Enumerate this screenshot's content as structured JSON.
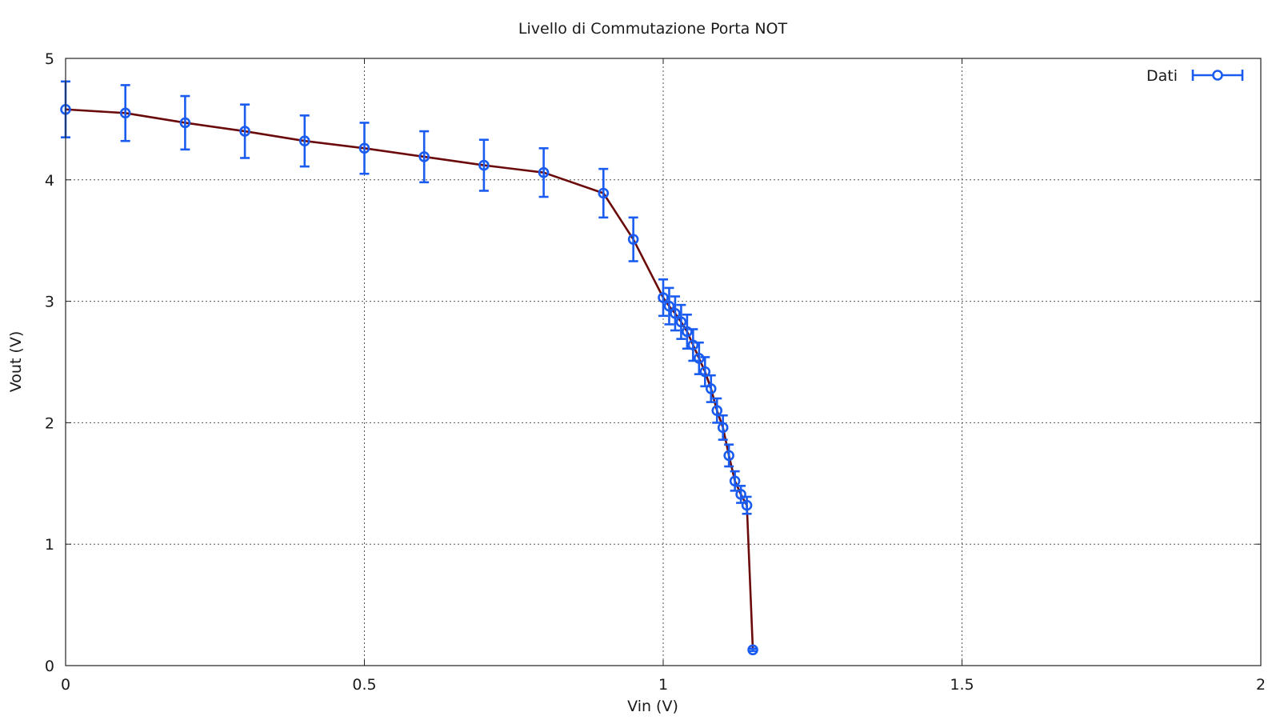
{
  "chart_data": {
    "type": "line",
    "title": "Livello di Commutazione Porta NOT",
    "xlabel": "Vin (V)",
    "ylabel": "Vout (V)",
    "xlim": [
      0,
      2
    ],
    "ylim": [
      0,
      5
    ],
    "x_ticks": [
      "0",
      "0.5",
      "1",
      "1.5",
      "2"
    ],
    "y_ticks": [
      "0",
      "1",
      "2",
      "3",
      "4",
      "5"
    ],
    "grid": true,
    "legend_position": "top-right",
    "colors": {
      "data": "#1a5cf0",
      "fit": "#6b0a0a"
    },
    "series": [
      {
        "name": "Dati",
        "style": "points-with-errorbars",
        "x": [
          0,
          0.1,
          0.2,
          0.3,
          0.4,
          0.5,
          0.6,
          0.7,
          0.8,
          0.9,
          0.95,
          1.0,
          1.01,
          1.02,
          1.03,
          1.04,
          1.05,
          1.06,
          1.07,
          1.08,
          1.09,
          1.1,
          1.11,
          1.12,
          1.13,
          1.14,
          1.15
        ],
        "y": [
          4.58,
          4.55,
          4.47,
          4.4,
          4.32,
          4.26,
          4.19,
          4.12,
          4.06,
          3.89,
          3.51,
          3.03,
          2.96,
          2.9,
          2.83,
          2.75,
          2.64,
          2.53,
          2.42,
          2.28,
          2.1,
          1.96,
          1.73,
          1.52,
          1.41,
          1.32,
          0.13
        ],
        "yerr": [
          0.23,
          0.23,
          0.22,
          0.22,
          0.21,
          0.21,
          0.21,
          0.21,
          0.2,
          0.2,
          0.18,
          0.15,
          0.15,
          0.14,
          0.14,
          0.14,
          0.13,
          0.13,
          0.12,
          0.11,
          0.1,
          0.1,
          0.09,
          0.08,
          0.07,
          0.07,
          0.01
        ]
      },
      {
        "name": "",
        "style": "line",
        "x": [
          0,
          0.1,
          0.2,
          0.3,
          0.4,
          0.5,
          0.6,
          0.7,
          0.8,
          0.9,
          0.95,
          1.0,
          1.01,
          1.02,
          1.03,
          1.04,
          1.05,
          1.06,
          1.07,
          1.08,
          1.09,
          1.1,
          1.11,
          1.12,
          1.13,
          1.14,
          1.15
        ],
        "y": [
          4.58,
          4.55,
          4.47,
          4.4,
          4.32,
          4.26,
          4.19,
          4.12,
          4.06,
          3.89,
          3.51,
          3.03,
          2.96,
          2.9,
          2.83,
          2.75,
          2.64,
          2.53,
          2.42,
          2.28,
          2.1,
          1.96,
          1.73,
          1.52,
          1.41,
          1.32,
          0.13
        ]
      }
    ]
  }
}
